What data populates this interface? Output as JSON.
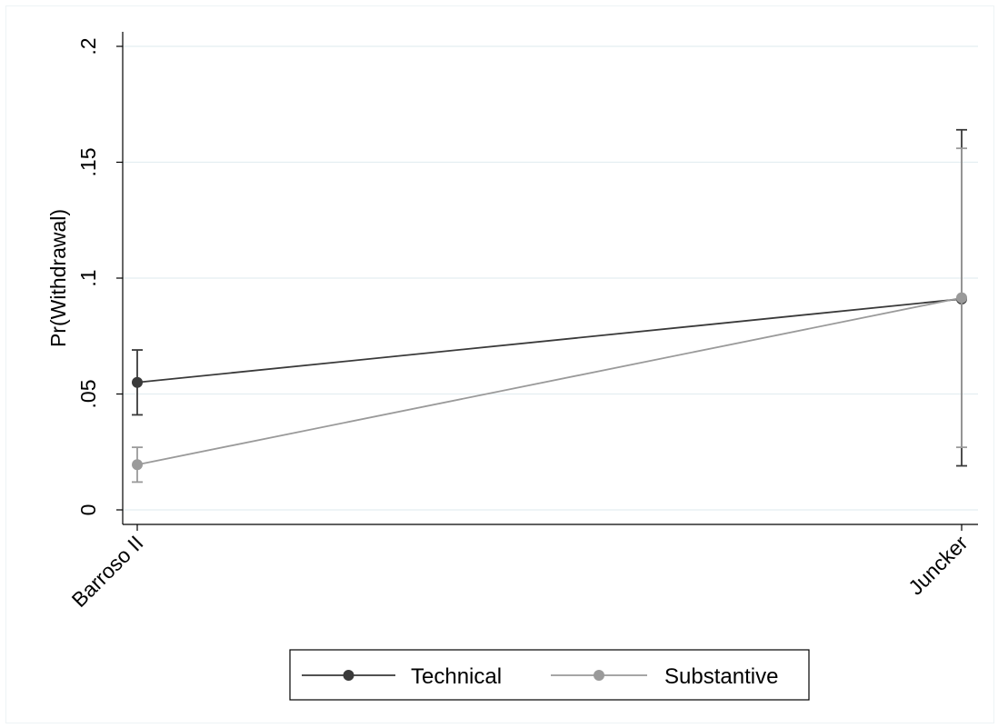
{
  "chart_data": {
    "type": "line",
    "categories": [
      "Barroso II",
      "Juncker"
    ],
    "ylabel": "Pr(Withdrawal)",
    "xlabel": "",
    "ylim": [
      0,
      0.2
    ],
    "yticks": [
      {
        "value": 0,
        "label": "0"
      },
      {
        "value": 0.05,
        "label": ".05"
      },
      {
        "value": 0.1,
        "label": ".1"
      },
      {
        "value": 0.15,
        "label": ".15"
      },
      {
        "value": 0.2,
        "label": ".2"
      }
    ],
    "grid": true,
    "legend_position": "bottom",
    "series": [
      {
        "name": "Technical",
        "color": "#3a3a3a",
        "values": [
          0.055,
          0.091
        ],
        "ci_low": [
          0.041,
          0.019
        ],
        "ci_high": [
          0.069,
          0.164
        ]
      },
      {
        "name": "Substantive",
        "color": "#9a9a9a",
        "values": [
          0.0195,
          0.0915
        ],
        "ci_low": [
          0.012,
          0.027
        ],
        "ci_high": [
          0.027,
          0.156
        ]
      }
    ]
  }
}
